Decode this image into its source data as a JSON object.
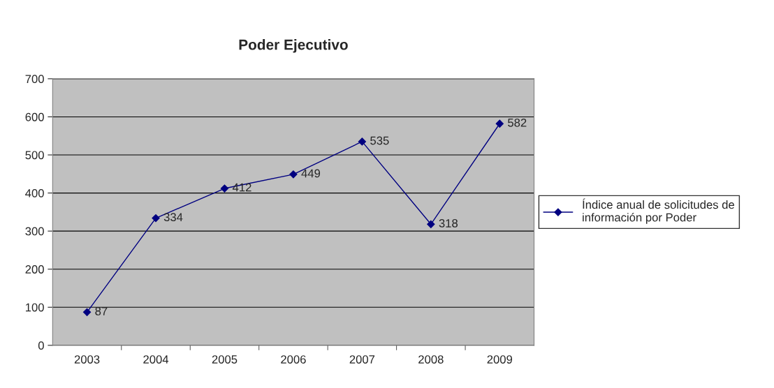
{
  "chart_data": {
    "type": "line",
    "title": "Poder Ejecutivo",
    "categories": [
      "2003",
      "2004",
      "2005",
      "2006",
      "2007",
      "2008",
      "2009"
    ],
    "series": [
      {
        "name": "Índice anual de solicitudes de información por Poder",
        "color": "#000080",
        "values": [
          87,
          334,
          412,
          449,
          535,
          318,
          582
        ]
      }
    ],
    "ylim": [
      0,
      700
    ],
    "yticks": [
      0,
      100,
      200,
      300,
      400,
      500,
      600,
      700
    ],
    "grid": "y",
    "legend": "right",
    "marker": "diamond",
    "line_style": "solid",
    "data_labels": true
  }
}
